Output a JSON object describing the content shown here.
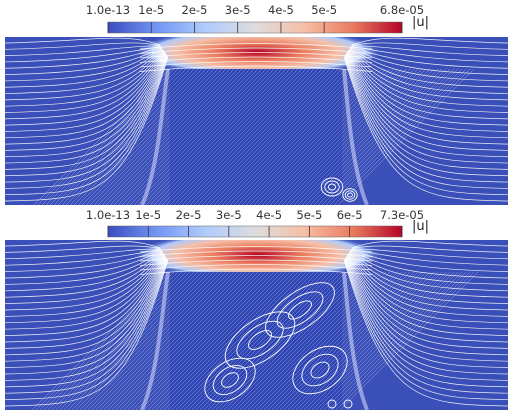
{
  "figure": {
    "panels": [
      {
        "colorbar": {
          "quantity": "|u|",
          "min_label": "1.0e-13",
          "max_label": "6.8e-05",
          "ticks": [
            "1e-5",
            "2e-5",
            "3e-5",
            "4e-5",
            "5e-5"
          ],
          "tick_values": [
            1e-05,
            2e-05,
            3e-05,
            4e-05,
            5e-05
          ],
          "max_value": 6.8e-05
        },
        "field": {
          "recirculation": "small-vortices-right"
        }
      },
      {
        "colorbar": {
          "quantity": "|u|",
          "min_label": "1.0e-13",
          "max_label": "7.3e-05",
          "ticks": [
            "1e-5",
            "2e-5",
            "3e-5",
            "4e-5",
            "5e-5",
            "6e-5"
          ],
          "tick_values": [
            1e-05,
            2e-05,
            3e-05,
            4e-05,
            5e-05,
            6e-05
          ],
          "max_value": 7.3e-05
        },
        "field": {
          "recirculation": "large-vortices-right"
        }
      }
    ],
    "colors": {
      "colormap": [
        "#3b4cc0",
        "#7396f5",
        "#b0cbfc",
        "#dddddd",
        "#f6bfa6",
        "#ea7b60",
        "#b40426"
      ],
      "background": "#3a4fb8",
      "streamline": "#ffffff"
    }
  },
  "chart_data": [
    {
      "type": "heatmap",
      "title": "",
      "quantity_label": "|u|",
      "colorbar_range": [
        1e-13,
        6.8e-05
      ],
      "colorbar_ticks": [
        1e-05,
        2e-05,
        3e-05,
        4e-05,
        5e-05
      ],
      "xlabel": "",
      "ylabel": "",
      "legend": "colorbar top-center"
    },
    {
      "type": "heatmap",
      "title": "",
      "quantity_label": "|u|",
      "colorbar_range": [
        1e-13,
        7.3e-05
      ],
      "colorbar_ticks": [
        1e-05,
        2e-05,
        3e-05,
        4e-05,
        5e-05,
        6e-05
      ],
      "xlabel": "",
      "ylabel": "",
      "legend": "colorbar top-center"
    }
  ]
}
